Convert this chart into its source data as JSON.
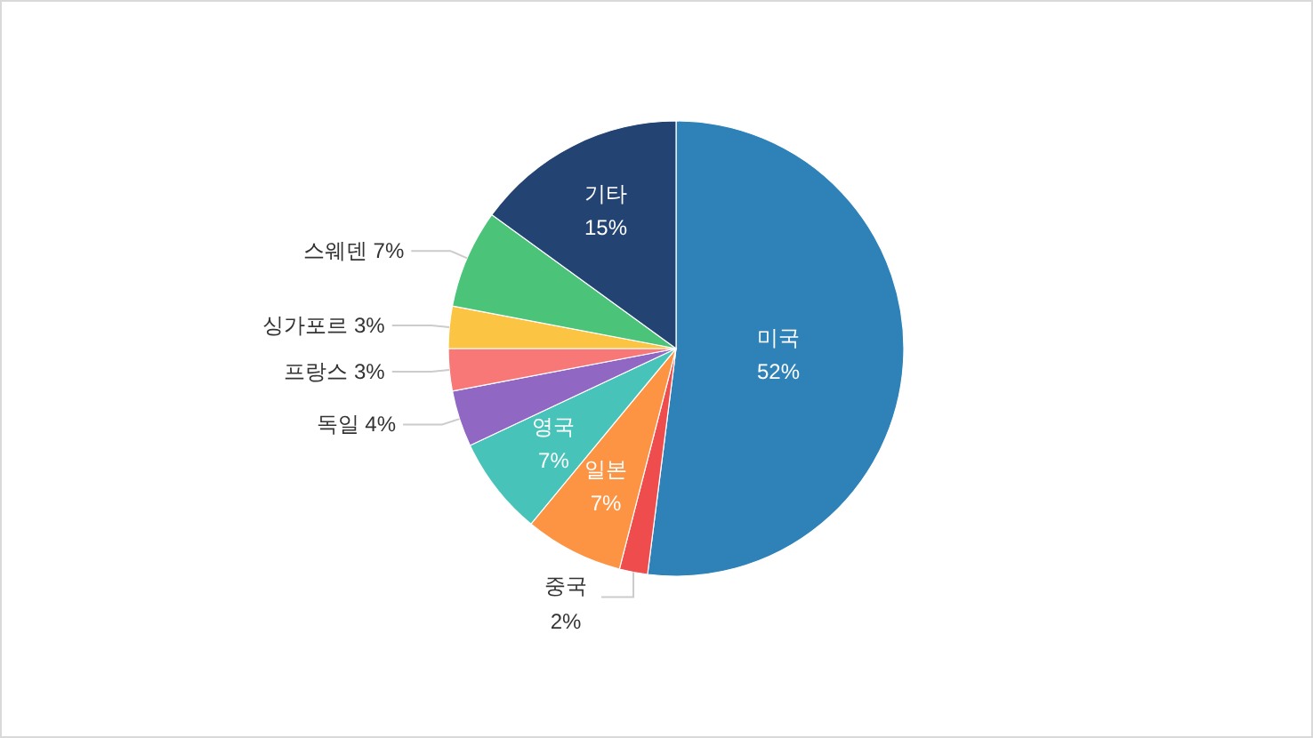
{
  "chart_data": {
    "type": "pie",
    "categories": [
      "미국",
      "중국",
      "일본",
      "영국",
      "독일",
      "프랑스",
      "싱가포르",
      "스웨덴",
      "기타"
    ],
    "values": [
      52,
      2,
      7,
      7,
      4,
      3,
      3,
      7,
      15
    ],
    "value_labels": [
      "52%",
      "2%",
      "7%",
      "7%",
      "4%",
      "3%",
      "3%",
      "7%",
      "15%"
    ],
    "colors": [
      "#2e82b8",
      "#ef4d4d",
      "#fd9444",
      "#48c3b9",
      "#9068c4",
      "#f87777",
      "#fcc443",
      "#4bc47a",
      "#234472"
    ]
  }
}
